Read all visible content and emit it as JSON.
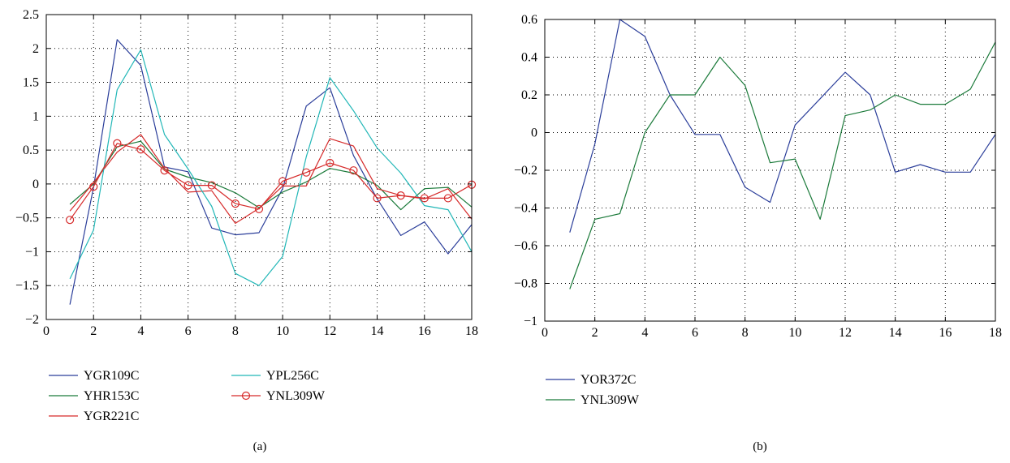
{
  "chart_data": [
    {
      "type": "line",
      "caption": "(a)",
      "xlim": [
        0,
        18
      ],
      "ylim": [
        -2,
        2.5
      ],
      "xticks": [
        0,
        2,
        4,
        6,
        8,
        10,
        12,
        14,
        16,
        18
      ],
      "xtick_labels": [
        "0",
        "2",
        "4",
        "6",
        "8",
        "10",
        "12",
        "14",
        "16",
        "18"
      ],
      "yticks": [
        -2,
        -1.5,
        -1,
        -0.5,
        0,
        0.5,
        1,
        1.5,
        2,
        2.5
      ],
      "ytick_labels": [
        "−2",
        "−1.5",
        "−1",
        "−0.5",
        "0",
        "0.5",
        "1",
        "1.5",
        "2",
        "2.5"
      ],
      "grid": true,
      "grid_style": "dotted",
      "legend_position": "below",
      "x": [
        1,
        2,
        3,
        4,
        5,
        6,
        7,
        8,
        9,
        10,
        11,
        12,
        13,
        14,
        15,
        16,
        17,
        18
      ],
      "series": [
        {
          "name": "YGR109C",
          "color": "#2b3e9a",
          "marker": "none",
          "values": [
            -1.78,
            -0.05,
            2.13,
            1.75,
            0.25,
            0.18,
            -0.65,
            -0.75,
            -0.72,
            -0.07,
            1.15,
            1.42,
            0.42,
            -0.22,
            -0.76,
            -0.56,
            -1.03,
            -0.6
          ]
        },
        {
          "name": "YHR153C",
          "color": "#1b7a3a",
          "marker": "none",
          "values": [
            -0.3,
            0.0,
            0.55,
            0.63,
            0.22,
            0.1,
            0.02,
            -0.13,
            -0.35,
            -0.12,
            0.03,
            0.23,
            0.16,
            -0.02,
            -0.38,
            -0.07,
            -0.05,
            -0.34
          ]
        },
        {
          "name": "YGR221C",
          "color": "#d62a2a",
          "marker": "none",
          "values": [
            -0.4,
            0.02,
            0.47,
            0.73,
            0.23,
            -0.12,
            -0.1,
            -0.58,
            -0.36,
            -0.03,
            -0.03,
            0.67,
            0.56,
            -0.07,
            -0.17,
            -0.22,
            -0.07,
            -0.52
          ]
        },
        {
          "name": "YPL256C",
          "color": "#22b7b7",
          "marker": "none",
          "values": [
            -1.4,
            -0.68,
            1.39,
            1.98,
            0.73,
            0.22,
            -0.33,
            -1.32,
            -1.5,
            -1.07,
            0.4,
            1.57,
            1.08,
            0.53,
            0.16,
            -0.32,
            -0.38,
            -1.0
          ]
        },
        {
          "name": "YNL309W",
          "color": "#d62a2a",
          "marker": "circle",
          "values": [
            -0.53,
            -0.04,
            0.6,
            0.51,
            0.2,
            -0.02,
            -0.02,
            -0.29,
            -0.37,
            0.04,
            0.17,
            0.31,
            0.2,
            -0.21,
            -0.17,
            -0.21,
            -0.21,
            -0.01
          ]
        }
      ]
    },
    {
      "type": "line",
      "caption": "(b)",
      "xlim": [
        0,
        18
      ],
      "ylim": [
        -1,
        0.6
      ],
      "xticks": [
        0,
        2,
        4,
        6,
        8,
        10,
        12,
        14,
        16,
        18
      ],
      "xtick_labels": [
        "0",
        "2",
        "4",
        "6",
        "8",
        "10",
        "12",
        "14",
        "16",
        "18"
      ],
      "yticks": [
        -1,
        -0.8,
        -0.6,
        -0.4,
        -0.2,
        0,
        0.2,
        0.4,
        0.6
      ],
      "ytick_labels": [
        "−1",
        "−0.8",
        "−0.6",
        "−0.4",
        "−0.2",
        "0",
        "0.2",
        "0.4",
        "0.6"
      ],
      "grid": true,
      "grid_style": "dotted",
      "legend_position": "below",
      "x": [
        1,
        2,
        3,
        4,
        5,
        6,
        7,
        8,
        9,
        10,
        11,
        12,
        13,
        14,
        15,
        16,
        17,
        18
      ],
      "series": [
        {
          "name": "YOR372C",
          "color": "#2b3e9a",
          "marker": "none",
          "values": [
            -0.53,
            -0.06,
            0.6,
            0.51,
            0.2,
            -0.01,
            -0.01,
            -0.29,
            -0.37,
            0.04,
            0.18,
            0.32,
            0.2,
            -0.21,
            -0.17,
            -0.21,
            -0.21,
            -0.01
          ]
        },
        {
          "name": "YNL309W",
          "color": "#1b7a3a",
          "marker": "none",
          "values": [
            -0.83,
            -0.46,
            -0.43,
            0.0,
            0.2,
            0.2,
            0.4,
            0.25,
            -0.16,
            -0.14,
            -0.46,
            0.09,
            0.12,
            0.2,
            0.15,
            0.15,
            0.23,
            0.48
          ]
        }
      ]
    }
  ]
}
